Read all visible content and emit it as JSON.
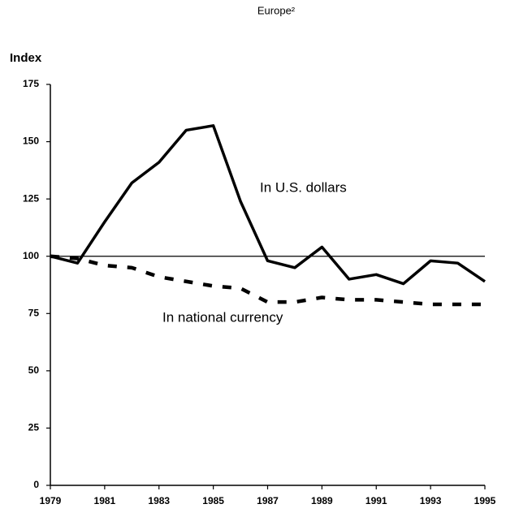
{
  "chart_data": {
    "type": "line",
    "title": "Europe²",
    "ylabel": "Index",
    "x": [
      1979,
      1980,
      1981,
      1982,
      1983,
      1984,
      1985,
      1986,
      1987,
      1988,
      1989,
      1990,
      1991,
      1992,
      1993,
      1994,
      1995
    ],
    "series": [
      {
        "name": "In U.S. dollars",
        "color": "#000000",
        "style": "solid",
        "values": [
          100,
          97,
          115,
          132,
          141,
          155,
          157,
          124,
          98,
          95,
          104,
          90,
          92,
          88,
          98,
          97,
          89
        ]
      },
      {
        "name": "In national currency",
        "color": "#000000",
        "style": "dashed",
        "values": [
          100,
          99,
          96,
          95,
          91,
          89,
          87,
          86,
          80,
          80,
          82,
          81,
          81,
          80,
          79,
          79,
          79
        ]
      }
    ],
    "hline": 100,
    "xlim": [
      1979,
      1995
    ],
    "xticks": [
      1979,
      1981,
      1983,
      1985,
      1987,
      1989,
      1991,
      1993,
      1995
    ],
    "ylim": [
      0,
      175
    ],
    "yticks": [
      0,
      25,
      50,
      75,
      100,
      125,
      150,
      175
    ],
    "grid": false
  }
}
